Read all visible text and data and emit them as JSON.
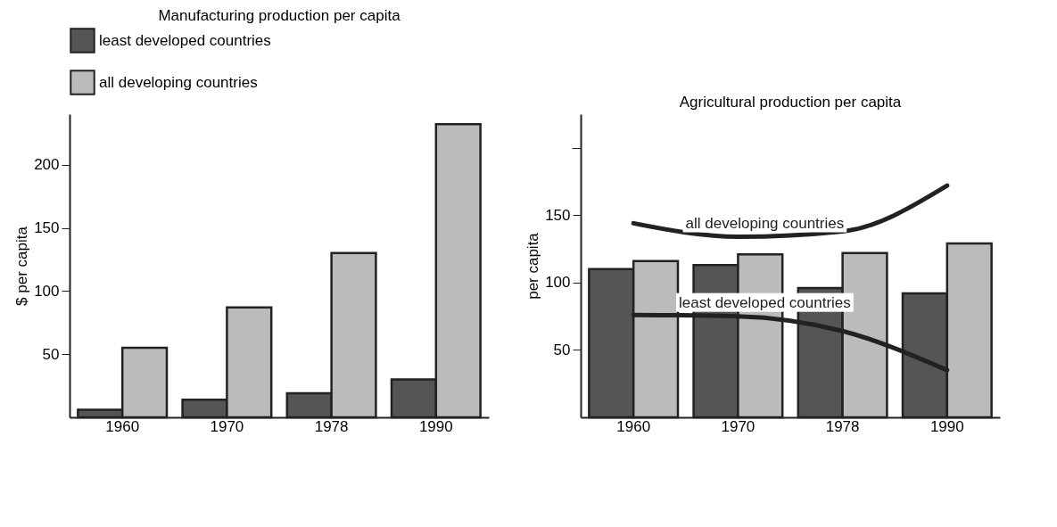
{
  "chart_data": [
    {
      "type": "bar",
      "title": "Manufacturing production per capita",
      "ylabel": "$ per capita",
      "categories": [
        "1960",
        "1970",
        "1978",
        "1990"
      ],
      "ylim": [
        0,
        240
      ],
      "yticks": [
        50,
        100,
        150,
        200
      ],
      "grid": false,
      "legend": "top",
      "series": [
        {
          "name": "least developed countries",
          "color": "#555555",
          "values": [
            6,
            14,
            19,
            30
          ]
        },
        {
          "name": "all developing countries",
          "color": "#bbbbbb",
          "values": [
            55,
            87,
            130,
            232
          ]
        }
      ]
    },
    {
      "type": "bar",
      "title": "Agricultural production per capita",
      "ylabel": "per capita",
      "categories": [
        "1960",
        "1970",
        "1978",
        "1990"
      ],
      "ylim": [
        0,
        225
      ],
      "yticks": [
        50,
        100,
        150,
        {
          "value": 200,
          "label": null
        }
      ],
      "grid": false,
      "series": [
        {
          "color": "#555555",
          "values": [
            110,
            113,
            96,
            92
          ]
        },
        {
          "color": "#bbbbbb",
          "values": [
            116,
            121,
            122,
            129
          ]
        },
        {
          "type": "line",
          "name": "all developing countries",
          "color": "#222222",
          "values": [
            144,
            134,
            138,
            172
          ]
        },
        {
          "type": "line",
          "name": "least developed countries",
          "color": "#222222",
          "values": [
            76,
            75,
            64,
            35
          ]
        }
      ]
    }
  ]
}
